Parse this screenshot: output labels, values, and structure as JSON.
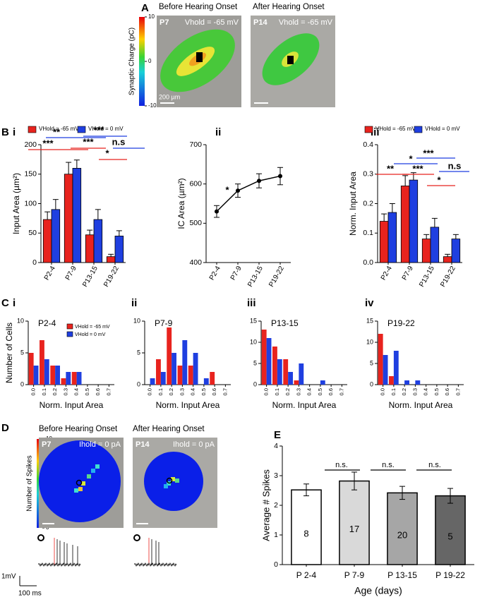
{
  "panel_labels": [
    "A",
    "B",
    "C",
    "D",
    "E"
  ],
  "panel_a": {
    "colorbar": {
      "label": "Synaptic Charge (pC)",
      "lim": [
        -10,
        10
      ],
      "ticks": [
        10,
        0,
        -10
      ]
    },
    "images": [
      {
        "title": "Before Hearing Onset",
        "age": "P7",
        "hold": "Vhold = -65 mV",
        "scale_bar": "200 µm"
      },
      {
        "title": "After Hearing Onset",
        "age": "P14",
        "hold": "Vhold = -65 mV"
      }
    ]
  },
  "panel_d": {
    "colorbar": {
      "label": "Number of Spikes",
      "lim": [
        0,
        10
      ],
      "ticks": [
        10,
        0
      ]
    },
    "images": [
      {
        "title": "Before Hearing Onset",
        "age": "P7",
        "hold": "Ihold = 0 pA"
      },
      {
        "title": "After Hearing Onset",
        "age": "P14",
        "hold": "Ihold = 0 pA"
      }
    ],
    "scale_bar": {
      "y": "1mV",
      "x": "100 ms"
    }
  },
  "chart_data": [
    {
      "type": "bar",
      "panel_label": "i",
      "ylabel": "Input Area (µm²)",
      "categories": [
        "P2-4",
        "P7-9",
        "P13-15",
        "P19-22"
      ],
      "series": [
        {
          "name": "VHold = -65 mV",
          "color": "#e8231e",
          "values": [
            73,
            150,
            47,
            10
          ],
          "errors": [
            13,
            20,
            8,
            4
          ]
        },
        {
          "name": "VHold = 0 mV",
          "color": "#1f3fe0",
          "values": [
            90,
            160,
            73,
            45
          ],
          "errors": [
            17,
            14,
            17,
            9
          ]
        }
      ],
      "ylim": [
        0,
        200
      ],
      "yticks": [
        0,
        50,
        100,
        150,
        200
      ],
      "legend": "top",
      "annotations": [
        "**",
        "***",
        "***",
        "***",
        "n.s",
        "*"
      ]
    },
    {
      "type": "line",
      "panel_label": "ii",
      "ylabel": "IC Area (µm²)",
      "categories": [
        "P2-4",
        "P7-9",
        "P13-15",
        "P19-22"
      ],
      "values": [
        530,
        583,
        608,
        620
      ],
      "errors": [
        15,
        17,
        18,
        22
      ],
      "color": "#000000",
      "ylim": [
        400,
        700
      ],
      "yticks": [
        400,
        500,
        600,
        700
      ],
      "annotations": [
        "*"
      ]
    },
    {
      "type": "bar",
      "panel_label": "iii",
      "ylabel": "Norm. Input Area",
      "categories": [
        "P2-4",
        "P7-9",
        "P13-15",
        "P19-22"
      ],
      "series": [
        {
          "name": "VHold = -65 mV",
          "color": "#e8231e",
          "values": [
            0.14,
            0.26,
            0.08,
            0.02
          ],
          "errors": [
            0.025,
            0.035,
            0.015,
            0.008
          ]
        },
        {
          "name": "VHold = 0 mV",
          "color": "#1f3fe0",
          "values": [
            0.17,
            0.28,
            0.12,
            0.08
          ],
          "errors": [
            0.03,
            0.025,
            0.03,
            0.015
          ]
        }
      ],
      "ylim": [
        0,
        0.4
      ],
      "yticks": [
        {
          "value": 0,
          "label": "0.0"
        },
        0.1,
        0.2,
        0.3,
        0.4
      ],
      "legend": "top",
      "annotations": [
        "**",
        "*",
        "***",
        "***",
        "n.s",
        "*"
      ]
    },
    {
      "type": "bar",
      "panel_label": "i",
      "title": "P2-4",
      "ylabel": "Number of Cells",
      "xlabel": "Norm. Input Area",
      "categories": [
        "0.0",
        "0.1",
        "0.2",
        "0.3",
        "0.4",
        "0.5",
        "0.6",
        "0.7"
      ],
      "series": [
        {
          "name": "VHold = -65 mV",
          "color": "#e8231e",
          "values": [
            5,
            7,
            3,
            1,
            2,
            0,
            0,
            0
          ]
        },
        {
          "name": "VHold = 0 mV",
          "color": "#1f3fe0",
          "values": [
            3,
            4,
            3,
            2,
            2,
            0,
            0,
            0
          ]
        }
      ],
      "ylim": [
        0,
        10
      ],
      "yticks": [
        0,
        5,
        10
      ],
      "legend": "top right"
    },
    {
      "type": "bar",
      "panel_label": "ii",
      "title": "P7-9",
      "xlabel": "Norm. Input Area",
      "categories": [
        "0.0",
        "0.1",
        "0.2",
        "0.3",
        "0.4",
        "0.5",
        "0.6",
        "0.7"
      ],
      "series": [
        {
          "color": "#e8231e",
          "values": [
            0,
            4,
            9,
            3,
            3,
            0,
            2,
            0
          ]
        },
        {
          "color": "#1f3fe0",
          "values": [
            1,
            2,
            5,
            7,
            5,
            1,
            0,
            0
          ]
        }
      ],
      "ylim": [
        0,
        10
      ],
      "yticks": [
        0,
        5,
        10
      ]
    },
    {
      "type": "bar",
      "panel_label": "iii",
      "title": "P13-15",
      "xlabel": "Norm. Input Area",
      "categories": [
        "0.0",
        "0.1",
        "0.2",
        "0.3",
        "0.4",
        "0.5",
        "0.6",
        "0.7"
      ],
      "series": [
        {
          "color": "#e8231e",
          "values": [
            13,
            9,
            6,
            1,
            0,
            0,
            0,
            0
          ]
        },
        {
          "color": "#1f3fe0",
          "values": [
            11,
            6,
            3,
            5,
            0,
            1,
            0,
            0
          ]
        }
      ],
      "ylim": [
        0,
        15
      ],
      "yticks": [
        0,
        5,
        10,
        15
      ]
    },
    {
      "type": "bar",
      "panel_label": "iv",
      "title": "P19-22",
      "xlabel": "Norm. Input Area",
      "categories": [
        "0.0",
        "0.1",
        "0.2",
        "0.3",
        "0.4",
        "0.5",
        "0.6",
        "0.7"
      ],
      "series": [
        {
          "color": "#e8231e",
          "values": [
            12,
            2,
            0,
            0,
            0,
            0,
            0,
            0
          ]
        },
        {
          "color": "#1f3fe0",
          "values": [
            7,
            8,
            1,
            1,
            0,
            0,
            0,
            0
          ]
        }
      ],
      "ylim": [
        0,
        15
      ],
      "yticks": [
        0,
        5,
        10,
        15
      ]
    },
    {
      "type": "bar",
      "ylabel": "Average # Spikes",
      "xlabel": "Age (days)",
      "categories": [
        "P 2-4",
        "P 7-9",
        "P 13-15",
        "P 19-22"
      ],
      "values": [
        2.52,
        2.82,
        2.42,
        2.32
      ],
      "errors": [
        0.2,
        0.3,
        0.22,
        0.25
      ],
      "colors": [
        "#ffffff",
        "#d9d9d9",
        "#a6a6a6",
        "#666666"
      ],
      "counts": [
        8,
        17,
        20,
        5
      ],
      "ylim": [
        0,
        4
      ],
      "yticks": [
        0,
        1,
        2,
        3,
        4
      ],
      "annotations": [
        "n.s.",
        "n.s.",
        "n.s."
      ]
    }
  ]
}
